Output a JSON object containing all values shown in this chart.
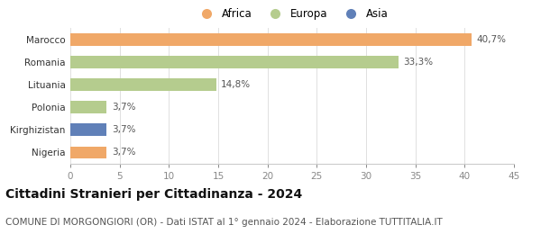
{
  "categories": [
    "Marocco",
    "Romania",
    "Lituania",
    "Polonia",
    "Kirghizistan",
    "Nigeria"
  ],
  "values": [
    40.7,
    33.3,
    14.8,
    3.7,
    3.7,
    3.7
  ],
  "labels": [
    "40,7%",
    "33,3%",
    "14,8%",
    "3,7%",
    "3,7%",
    "3,7%"
  ],
  "colors": [
    "#f0a868",
    "#b5cc8e",
    "#b5cc8e",
    "#b5cc8e",
    "#6080b8",
    "#f0a868"
  ],
  "legend_labels": [
    "Africa",
    "Europa",
    "Asia"
  ],
  "legend_colors": [
    "#f0a868",
    "#b5cc8e",
    "#6080b8"
  ],
  "xlim": [
    0,
    45
  ],
  "xticks": [
    0,
    5,
    10,
    15,
    20,
    25,
    30,
    35,
    40,
    45
  ],
  "title": "Cittadini Stranieri per Cittadinanza - 2024",
  "subtitle": "COMUNE DI MORGONGIORI (OR) - Dati ISTAT al 1° gennaio 2024 - Elaborazione TUTTITALIA.IT",
  "title_fontsize": 10,
  "subtitle_fontsize": 7.5,
  "label_fontsize": 7.5,
  "tick_fontsize": 7.5,
  "bar_height": 0.55,
  "background_color": "#ffffff"
}
